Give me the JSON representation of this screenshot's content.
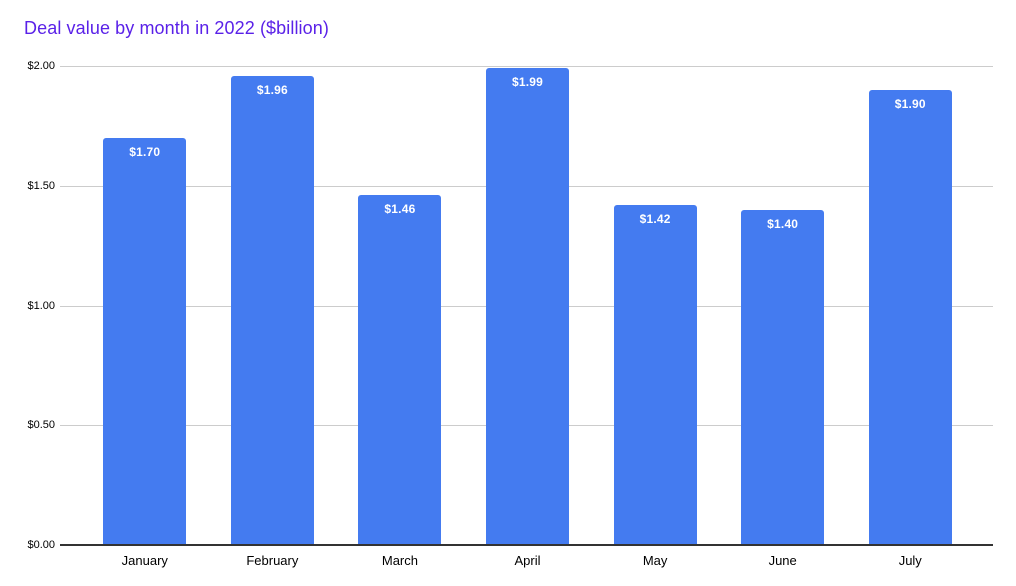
{
  "chart_data": {
    "type": "bar",
    "title": "Deal value by month in 2022 ($billion)",
    "categories": [
      "January",
      "February",
      "March",
      "April",
      "May",
      "June",
      "July"
    ],
    "values": [
      1.7,
      1.96,
      1.46,
      1.99,
      1.42,
      1.4,
      1.9
    ],
    "bar_labels": [
      "$1.70",
      "$1.96",
      "$1.46",
      "$1.99",
      "$1.42",
      "$1.40",
      "$1.90"
    ],
    "xlabel": "",
    "ylabel": "",
    "ylim": [
      0,
      2.0
    ],
    "yticks": [
      {
        "value": 0.0,
        "label": "$0.00"
      },
      {
        "value": 0.5,
        "label": "$0.50"
      },
      {
        "value": 1.0,
        "label": "$1.00"
      },
      {
        "value": 1.5,
        "label": "$1.50"
      },
      {
        "value": 2.0,
        "label": "$2.00"
      }
    ],
    "grid": true,
    "legend_position": "none",
    "colors": {
      "title": "#5a21e8",
      "bar": "#447bf0",
      "bar_label": "#ffffff",
      "gridline": "#cccccc",
      "axis_line": "#333333",
      "tick_label": "#000000"
    }
  }
}
